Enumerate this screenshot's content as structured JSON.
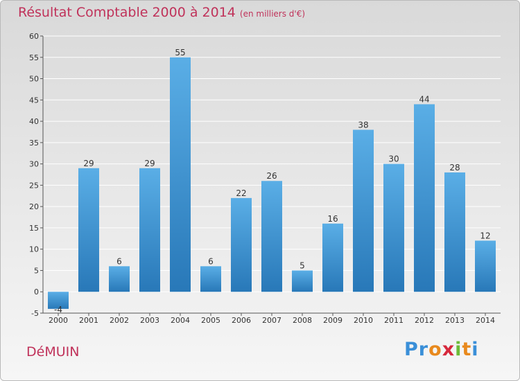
{
  "header": {
    "title": "Résultat Comptable 2000 à 2014",
    "unit": "(en milliers d'€)"
  },
  "footer": {
    "town": "DéMUIN",
    "logo_letters": [
      "P",
      "r",
      "o",
      "x",
      "i",
      "t",
      "i"
    ]
  },
  "colors": {
    "title": "#c0325a",
    "bar_top": "#5aaee6",
    "bar_bottom": "#2878b8",
    "logo": [
      "#3a8fd8",
      "#3a8fd8",
      "#e8891d",
      "#d6283c",
      "#6dbb38",
      "#e8891d",
      "#3a8fd8"
    ]
  },
  "chart_data": {
    "type": "bar",
    "title": "Résultat Comptable 2000 à 2014",
    "categories": [
      "2000",
      "2001",
      "2002",
      "2003",
      "2004",
      "2005",
      "2006",
      "2007",
      "2008",
      "2009",
      "2010",
      "2011",
      "2012",
      "2013",
      "2014"
    ],
    "values": [
      -4,
      29,
      6,
      29,
      55,
      6,
      22,
      26,
      5,
      16,
      38,
      30,
      44,
      28,
      12
    ],
    "ylim": [
      -5,
      60
    ],
    "yticks": [
      -5,
      0,
      5,
      10,
      15,
      20,
      25,
      30,
      35,
      40,
      45,
      50,
      55,
      60
    ],
    "xlabel": "",
    "ylabel": "",
    "grid": true
  }
}
